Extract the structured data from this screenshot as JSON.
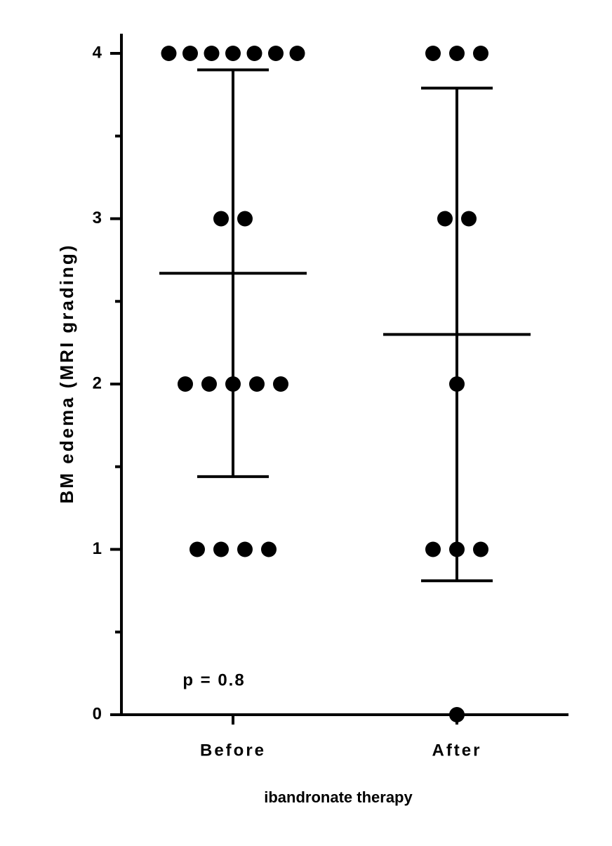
{
  "chart_data": {
    "type": "dotplot",
    "y_label": "BM edema (MRI grading)",
    "x_label": "ibandronate therapy",
    "annotation": "p = 0.8",
    "categories": [
      "Before",
      "After"
    ],
    "groups": [
      {
        "values": [
          4,
          4,
          4,
          4,
          4,
          4,
          4,
          3,
          3,
          2,
          2,
          2,
          2,
          2,
          1,
          1,
          1,
          1
        ],
        "mean": 2.67,
        "sd": 1.23
      },
      {
        "values": [
          4,
          4,
          4,
          3,
          3,
          2,
          1,
          1,
          1,
          0
        ],
        "mean": 2.3,
        "sd": 1.49
      }
    ],
    "color": "#000000",
    "ylim": [
      0,
      4
    ],
    "yticks": [
      0,
      1,
      2,
      3,
      4
    ],
    "minor_yticks": [
      0.5,
      1.5,
      2.5,
      3.5
    ]
  }
}
